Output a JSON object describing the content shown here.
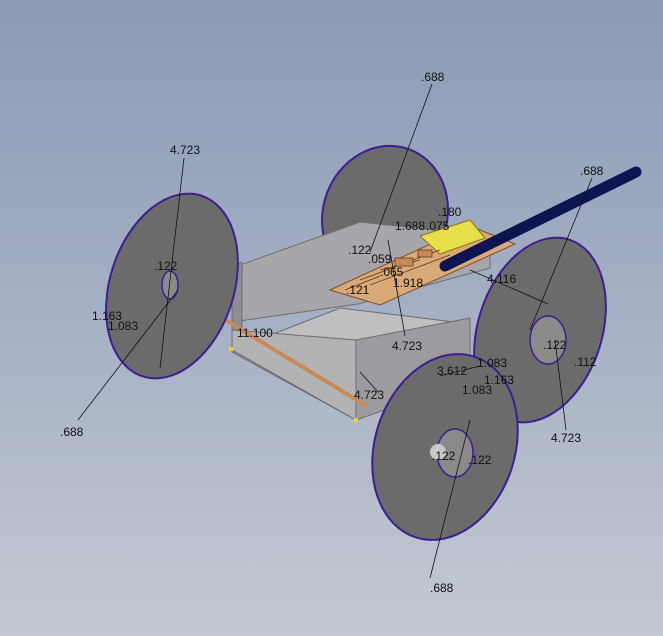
{
  "diagram": {
    "colors": {
      "wheel_fill": "#6b6b6b",
      "wheel_edge": "#3d1f8f",
      "chassis_light": "#b9b9bc",
      "chassis_dark": "#8e8e92",
      "axle": "#c98a5a",
      "board": "#d9a978",
      "chip": "#e8e04a",
      "rod": "#0e1450"
    },
    "dimensions": {
      "top_688": ".688",
      "left_4723": "4.723",
      "left_122": ".122",
      "left_1163": "1.163",
      "left_1083": "1.083",
      "left_688": ".688",
      "chassis_11100": "11.100",
      "right_688": ".688",
      "board_180": ".180",
      "board_1688": "1.688",
      "board_075": ".075",
      "board_122": ".122",
      "board_059": ".059",
      "board_065": ".065",
      "board_1918": "1.918",
      "board_121": ".121",
      "board_4723": "4.723",
      "right_4116": "4.116",
      "right_122": ".122",
      "right_112": ".112",
      "right_4723": "4.723",
      "mid_1083": "1.083",
      "mid_3612": "3.612",
      "mid_1163": "1.163",
      "mid_1083b": "1.083",
      "mid_4723": "4.723",
      "front_122a": ".122",
      "front_122b": ".122",
      "bottom_688": ".688"
    }
  }
}
